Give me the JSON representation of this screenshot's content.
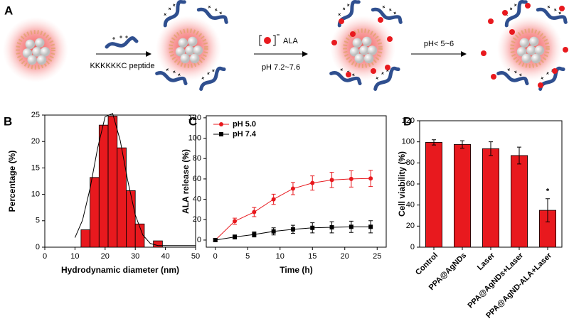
{
  "diagram": {
    "panel_label": "A",
    "peptide_label": "KKKKKKC peptide",
    "ala_label": "ALA",
    "neutral_ph_label": "pH 7.2~7.6",
    "acidic_ph_label": "pH< 5~6"
  },
  "chart_data": [
    {
      "type": "histogram",
      "panel_label": "B",
      "xlabel": "Hydrodynamic diameter (nm)",
      "ylabel": "Percentage (%)",
      "bins": [
        12,
        15,
        18,
        21,
        24,
        27,
        30,
        33,
        36,
        39
      ],
      "counts": [
        3.3,
        13.2,
        23.1,
        24.8,
        18.8,
        10.7,
        4.4,
        0,
        1.2
      ],
      "color": "#e8191e",
      "curve": {
        "x": [
          10,
          12.5,
          15,
          17.5,
          20,
          22.5,
          25,
          27.5,
          30,
          32.5,
          35,
          37.5,
          40,
          45,
          50
        ],
        "values": [
          1.8,
          5.1,
          11.1,
          18.7,
          24.7,
          25.3,
          20.2,
          12.6,
          6.1,
          2.3,
          0.7,
          0.3,
          0.3,
          0.3,
          0.3
        ],
        "color": "#000000"
      },
      "xlim": [
        0,
        50
      ],
      "xticks": [
        0,
        10,
        20,
        30,
        40,
        50
      ],
      "ylim": [
        0,
        25
      ],
      "yticks": [
        0,
        5,
        10,
        15,
        20,
        25
      ]
    },
    {
      "type": "line",
      "panel_label": "C",
      "xlabel": "Time (h)",
      "ylabel": "ALA release (%)",
      "legend": "upper left",
      "x": [
        0,
        3,
        6,
        9,
        12,
        15,
        18,
        21,
        24
      ],
      "series": [
        {
          "name": "pH 5.0",
          "color": "#e8191e",
          "marker": "circle",
          "values": [
            0,
            18.5,
            27.5,
            40,
            50.5,
            56,
            59,
            60,
            60.5
          ],
          "errors": [
            1.5,
            3,
            4.5,
            5,
            6,
            7,
            7.5,
            8,
            8
          ]
        },
        {
          "name": "pH 7.4",
          "color": "#000000",
          "marker": "square",
          "values": [
            0,
            3,
            5.5,
            8.5,
            10.5,
            12,
            12.5,
            13,
            13
          ],
          "errors": [
            1.5,
            2,
            2.5,
            3.5,
            4,
            5,
            5.5,
            5.5,
            6
          ]
        }
      ],
      "xlim": [
        -1.4,
        26.4
      ],
      "xticks": [
        0,
        5,
        10,
        15,
        20,
        25
      ],
      "ylim": [
        -7,
        122
      ],
      "yticks": [
        0,
        20,
        40,
        60,
        80,
        100,
        120
      ]
    },
    {
      "type": "bar",
      "panel_label": "D",
      "ylabel": "Cell viability (%)",
      "categories": [
        "Control",
        "PPA@AgNDs",
        "Laser",
        "PPA@AgNDs+Laser",
        "PPA@AgND-ALA+Laser"
      ],
      "values": [
        99.5,
        97.5,
        93.5,
        87,
        35
      ],
      "errors": [
        2.5,
        3.5,
        6.5,
        8,
        11
      ],
      "color": "#e8191e",
      "annotation": "*",
      "annotation_index": 4,
      "ylim": [
        0,
        120
      ],
      "yticks": [
        0,
        20,
        40,
        60,
        80,
        100,
        120
      ]
    }
  ]
}
